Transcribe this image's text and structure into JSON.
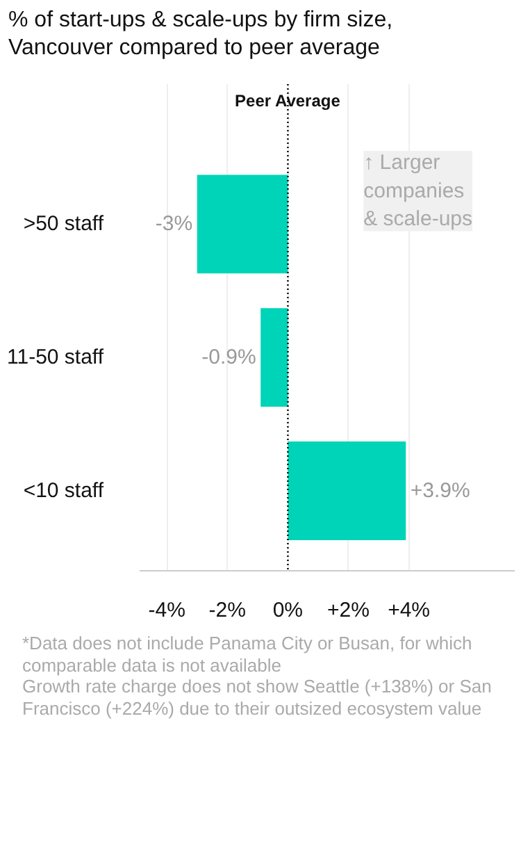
{
  "chart_data": {
    "type": "bar",
    "orientation": "horizontal",
    "title": "% of start-ups & scale-ups by firm size,\nVancouver compared to peer average",
    "categories": [
      ">50 staff",
      "11-50 staff",
      "<10 staff"
    ],
    "values": [
      -3,
      -0.9,
      3.9
    ],
    "value_labels": [
      "-3%",
      "-0.9%",
      "+3.9%"
    ],
    "color": "#00d4b8",
    "xlim": [
      -4.9,
      7.5
    ],
    "xticks": [
      {
        "value": -4,
        "label": "-4%"
      },
      {
        "value": -2,
        "label": "-2%"
      },
      {
        "value": 0,
        "label": "0%"
      },
      {
        "value": 2,
        "label": "+2%"
      },
      {
        "value": 4,
        "label": "+4%"
      }
    ],
    "grid": "x",
    "ref_lines": [
      {
        "axis": "x",
        "value": 0,
        "label": "Peer Average",
        "line_style": "dotted",
        "color": "#000000"
      }
    ],
    "annotations": [
      "↑ Larger\ncompanies\n& scale-ups",
      "*Data does not include Panama City or Busan, for which comparable data is not available",
      "Growth rate charge does not show Seattle (+138%) or San Francisco (+224%) due to their outsized ecosystem value"
    ]
  }
}
